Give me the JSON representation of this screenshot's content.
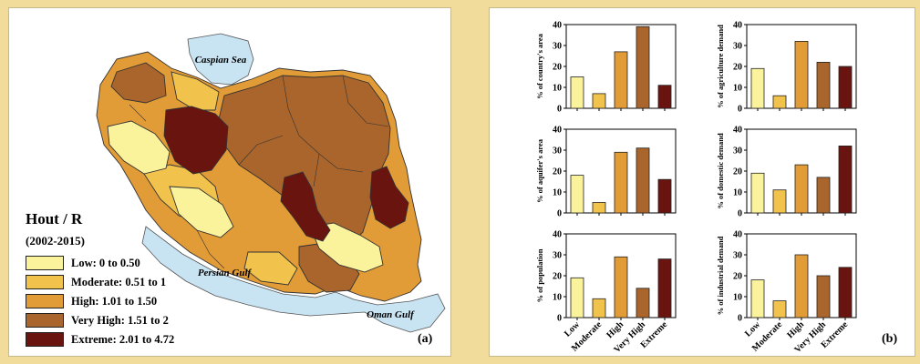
{
  "colors": {
    "background": "#f1dc9c",
    "low": "#fbf29c",
    "moderate": "#f1c34d",
    "high": "#e19b37",
    "very_high": "#a9652c",
    "extreme": "#6a1410",
    "water": "#c8e4f3"
  },
  "map": {
    "legend_title": "Hout / R",
    "legend_period": "(2002-2015)",
    "legend": [
      {
        "label": "Low:  0 to 0.50",
        "color": "#fbf29c"
      },
      {
        "label": "Moderate:  0.51 to 1",
        "color": "#f1c34d"
      },
      {
        "label": "High:  1.01 to 1.50",
        "color": "#e19b37"
      },
      {
        "label": "Very High:  1.51 to 2",
        "color": "#a9652c"
      },
      {
        "label": "Extreme:  2.01 to 4.72",
        "color": "#6a1410"
      }
    ],
    "water_labels": {
      "caspian": "Caspian Sea",
      "persian": "Persian Gulf",
      "oman": "Oman Gulf"
    },
    "panel_label": "(a)"
  },
  "chart_data": [
    {
      "type": "bar",
      "categories": [
        "Low",
        "Moderate",
        "High",
        "Very High",
        "Extreme"
      ],
      "values": [
        15,
        7,
        27,
        39,
        11
      ],
      "ylabel": "% of country's area",
      "ylim": [
        0,
        40
      ]
    },
    {
      "type": "bar",
      "categories": [
        "Low",
        "Moderate",
        "High",
        "Very High",
        "Extreme"
      ],
      "values": [
        19,
        6,
        32,
        22,
        20
      ],
      "ylabel": "% of agriculture demand",
      "ylim": [
        0,
        40
      ]
    },
    {
      "type": "bar",
      "categories": [
        "Low",
        "Moderate",
        "High",
        "Very High",
        "Extreme"
      ],
      "values": [
        18,
        5,
        29,
        31,
        16
      ],
      "ylabel": "% of aquifer's area",
      "ylim": [
        0,
        40
      ]
    },
    {
      "type": "bar",
      "categories": [
        "Low",
        "Moderate",
        "High",
        "Very High",
        "Extreme"
      ],
      "values": [
        19,
        11,
        23,
        17,
        32
      ],
      "ylabel": "% of domestic demand",
      "ylim": [
        0,
        40
      ]
    },
    {
      "type": "bar",
      "categories": [
        "Low",
        "Moderate",
        "High",
        "Very High",
        "Extreme"
      ],
      "values": [
        19,
        9,
        29,
        14,
        28
      ],
      "ylabel": "% of population",
      "ylim": [
        0,
        40
      ]
    },
    {
      "type": "bar",
      "categories": [
        "Low",
        "Moderate",
        "High",
        "Very High",
        "Extreme"
      ],
      "values": [
        18,
        8,
        30,
        20,
        24
      ],
      "ylabel": "% of industrial demand",
      "ylim": [
        0,
        40
      ]
    }
  ],
  "charts_panel_label": "(b)"
}
